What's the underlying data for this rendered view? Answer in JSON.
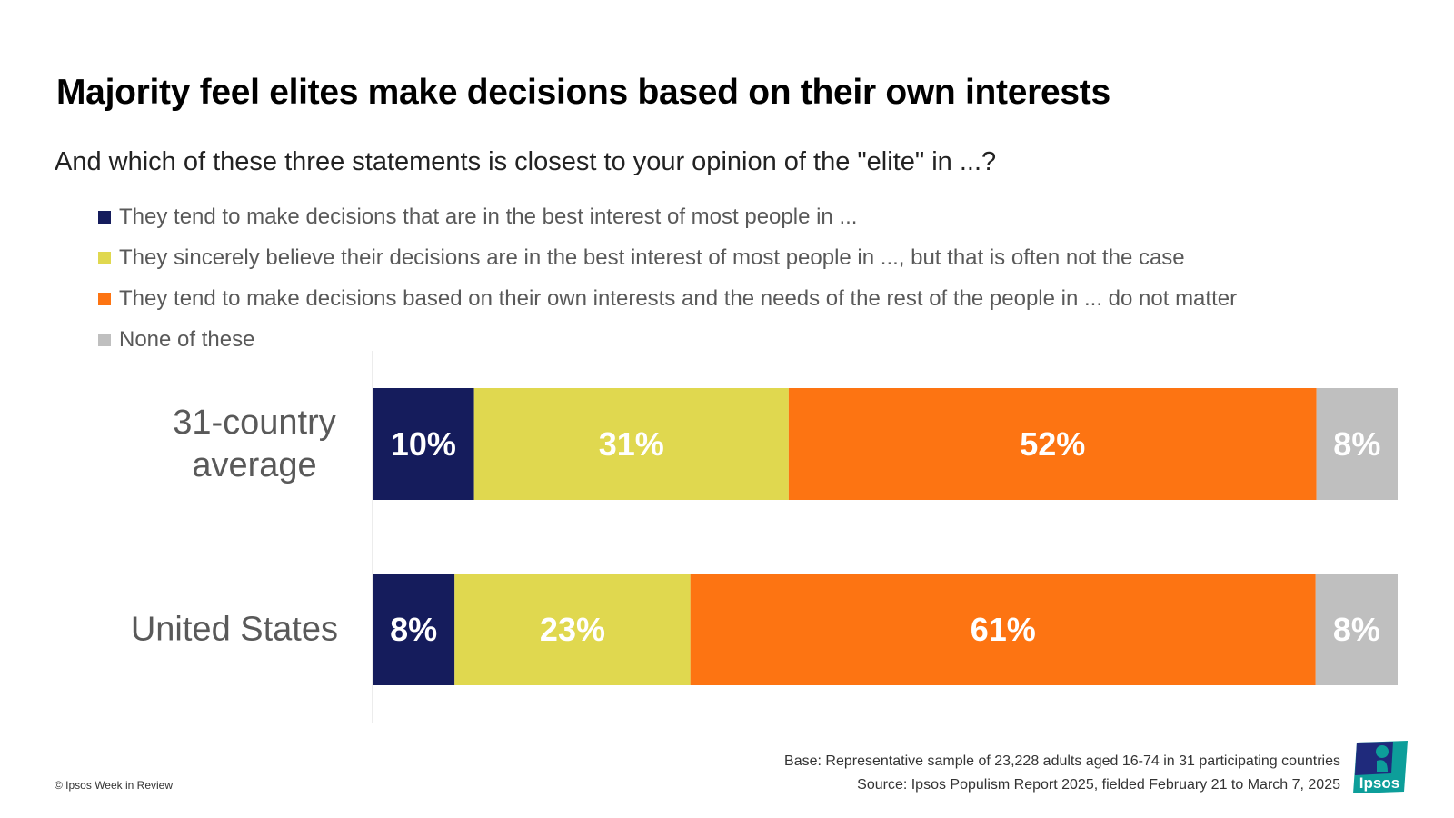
{
  "header": {
    "title": "Majority feel elites make decisions based on their own interests",
    "subtitle": "And which of these three statements is closest to your opinion of the \"elite\" in ...?"
  },
  "legend": [
    {
      "label": "They tend to make decisions that are in the best interest of most people in ...",
      "color": "#151c5c"
    },
    {
      "label": "They sincerely believe their decisions are in the best interest of most people in ..., but that is often not the case",
      "color": "#e0d84f"
    },
    {
      "label": "They tend to make decisions based on their own interests and the needs of the rest of the people in ... do not matter",
      "color": "#fd7412"
    },
    {
      "label": "None of these",
      "color": "#bfbfbf"
    }
  ],
  "chart_data": {
    "type": "bar",
    "orientation": "horizontal",
    "stacked": true,
    "categories": [
      "31-country average",
      "United States"
    ],
    "series": [
      {
        "name": "They tend to make decisions that are in the best interest of most people in ...",
        "values": [
          10,
          8
        ],
        "color": "#151c5c"
      },
      {
        "name": "They sincerely believe their decisions are in the best interest of most people in ..., but that is often not the case",
        "values": [
          31,
          23
        ],
        "color": "#e0d84f"
      },
      {
        "name": "They tend to make decisions based on their own interests and the needs of the rest of the people in ... do not matter",
        "values": [
          52,
          61
        ],
        "color": "#fd7412"
      },
      {
        "name": "None of these",
        "values": [
          8,
          8
        ],
        "color": "#bfbfbf"
      }
    ],
    "data_labels": [
      [
        "10%",
        "31%",
        "52%",
        "8%"
      ],
      [
        "8%",
        "23%",
        "61%",
        "8%"
      ]
    ],
    "value_suffix": "%",
    "title": "",
    "xlabel": "",
    "ylabel": "",
    "legend_position": "top"
  },
  "footer": {
    "copyright": "© Ipsos Week in Review",
    "base": "Base: Representative sample of 23,228 adults aged 16-74 in 31 participating countries",
    "source": "Source: Ipsos Populism Report 2025, fielded February 21 to March 7, 2025",
    "logo_text": "Ipsos"
  }
}
